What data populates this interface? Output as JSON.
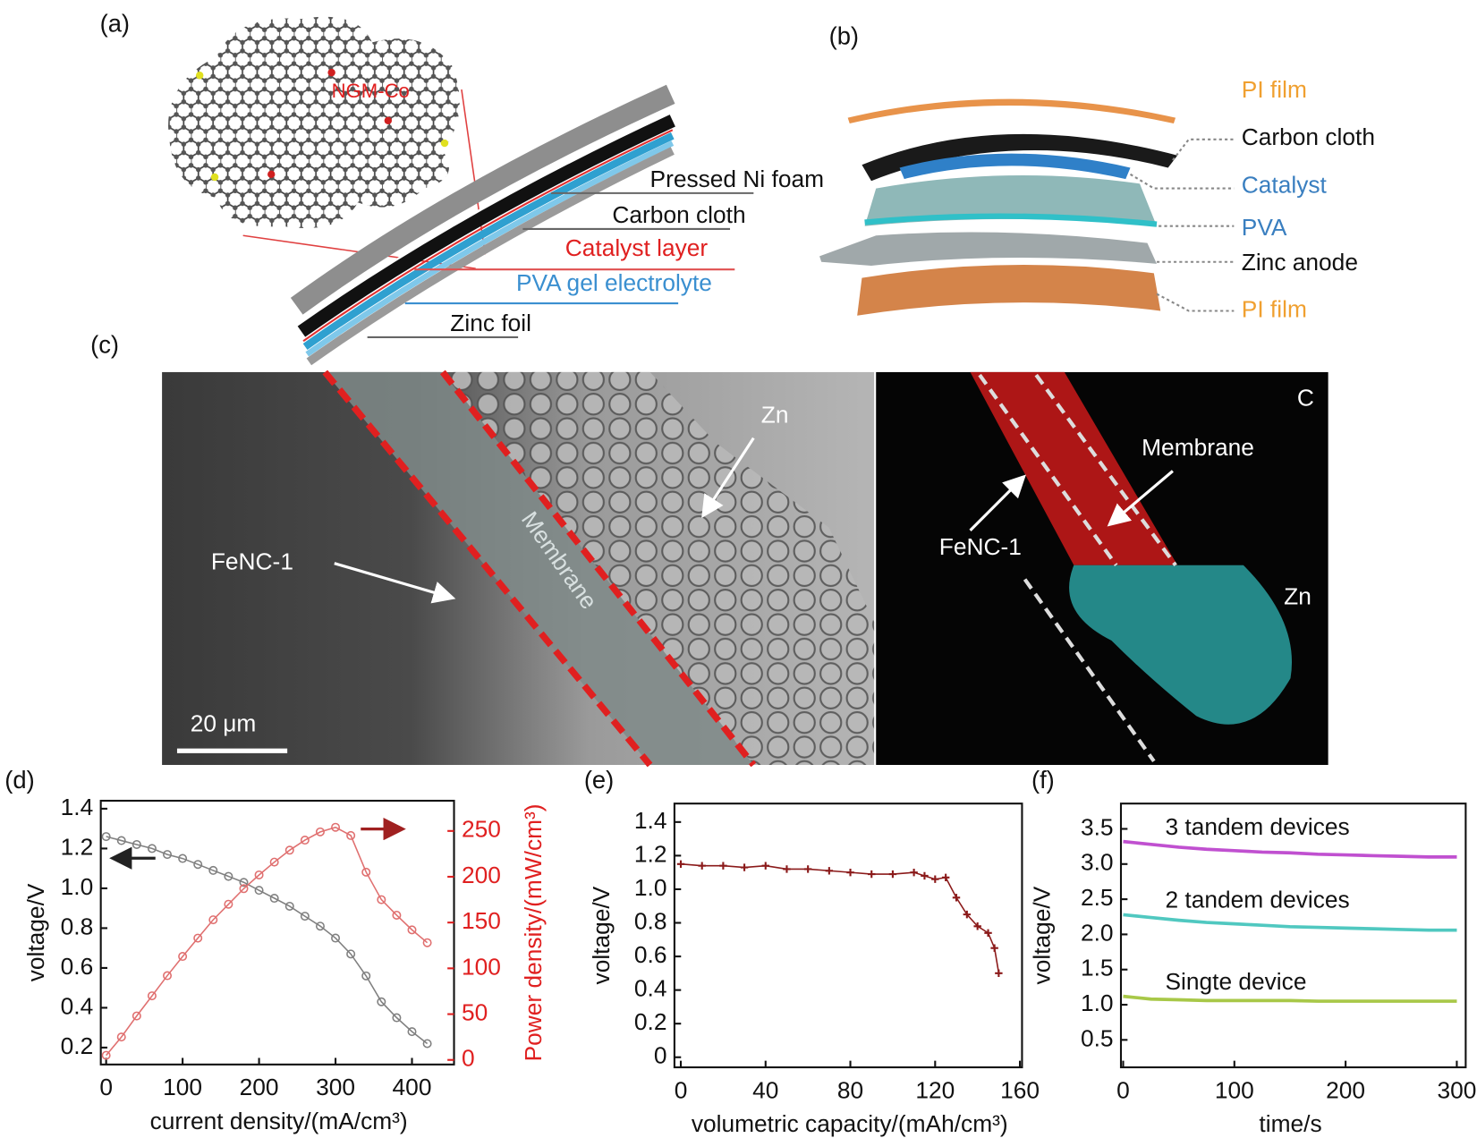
{
  "figure": {
    "panel_labels": [
      "(a)",
      "(b)",
      "(c)",
      "(d)",
      "(e)",
      "(f)"
    ],
    "a": {
      "molecule_label": "NGM-Co",
      "layers": [
        "Pressed Ni foam",
        "Carbon cloth",
        "Catalyst layer",
        "PVA gel electrolyte",
        "Zinc foil"
      ]
    },
    "b": {
      "layers": [
        "PI film",
        "Carbon cloth",
        "Catalyst",
        "PVA",
        "Zinc anode",
        "PI film"
      ]
    },
    "c": {
      "sem": {
        "zn": "Zn",
        "fenc": "FeNC-1",
        "membrane": "Membrane",
        "scale": "20 μm"
      },
      "map": {
        "c": "C",
        "membrane": "Membrane",
        "fenc": "FeNC-1",
        "zn": "Zn"
      }
    }
  },
  "chart_data": [
    {
      "type": "line",
      "x_label": "current density/(mA/cm³)",
      "y_label": "voltage/V",
      "y2_label": "Power density/(mW/cm³)",
      "y2_color": "#e02020",
      "marker": "circle",
      "x": [
        0,
        20,
        40,
        60,
        80,
        100,
        120,
        140,
        160,
        180,
        200,
        220,
        240,
        260,
        280,
        300,
        320,
        340,
        360,
        380,
        400,
        420
      ],
      "series": [
        {
          "color": "#808080",
          "values": [
            1.26,
            1.24,
            1.22,
            1.2,
            1.17,
            1.15,
            1.12,
            1.09,
            1.06,
            1.03,
            0.99,
            0.95,
            0.91,
            0.86,
            0.81,
            0.75,
            0.67,
            0.56,
            0.43,
            0.35,
            0.28,
            0.22
          ]
        },
        {
          "color": "#e07070",
          "axis": "y2",
          "values": [
            5,
            25,
            48,
            70,
            92,
            113,
            133,
            153,
            170,
            187,
            202,
            216,
            229,
            240,
            249,
            254,
            245,
            205,
            175,
            158,
            142,
            128
          ]
        }
      ],
      "xlim": [
        -7,
        455
      ],
      "xticks": [
        0,
        100,
        200,
        300,
        400
      ],
      "ylim": [
        0.115,
        1.44
      ],
      "yticks": [
        0.2,
        0.4,
        0.6,
        0.8,
        {
          "value": 1,
          "label": "1.0"
        },
        1.2,
        1.4
      ],
      "y2lim": [
        -5,
        283
      ],
      "y2ticks": [
        0,
        50,
        100,
        150,
        200,
        250
      ]
    },
    {
      "type": "line",
      "x_label": "volumetric capacity/(mAh/cm³)",
      "y_label": "voltage/V",
      "marker": "cross",
      "x": [
        0,
        10,
        20,
        30,
        40,
        50,
        60,
        70,
        80,
        90,
        100,
        110,
        115,
        120,
        125,
        130,
        135,
        140,
        145,
        148,
        150
      ],
      "series": [
        {
          "color": "#8b1a1a",
          "values": [
            1.15,
            1.14,
            1.14,
            1.13,
            1.14,
            1.12,
            1.12,
            1.11,
            1.1,
            1.09,
            1.09,
            1.1,
            1.08,
            1.06,
            1.07,
            0.95,
            0.85,
            0.78,
            0.74,
            0.65,
            0.5
          ]
        }
      ],
      "xlim": [
        -3,
        161
      ],
      "xticks": [
        0,
        40,
        80,
        120,
        160
      ],
      "ylim": [
        -0.06,
        1.51
      ],
      "yticks": [
        0,
        0.2,
        0.4,
        0.6,
        0.8,
        {
          "value": 1,
          "label": "1.0"
        },
        1.2,
        1.4
      ]
    },
    {
      "type": "line",
      "x_label": "time/s",
      "y_label": "voltage/V",
      "x": [
        0,
        25,
        50,
        75,
        100,
        125,
        150,
        175,
        200,
        225,
        250,
        275,
        300
      ],
      "series": [
        {
          "name": "3 tandem devices",
          "color": "#c050d0",
          "values": [
            3.32,
            3.28,
            3.24,
            3.21,
            3.19,
            3.17,
            3.16,
            3.14,
            3.13,
            3.12,
            3.11,
            3.1,
            3.1
          ]
        },
        {
          "name": "2 tandem devices",
          "color": "#50c8c0",
          "values": [
            2.28,
            2.24,
            2.2,
            2.17,
            2.15,
            2.13,
            2.11,
            2.1,
            2.09,
            2.08,
            2.07,
            2.06,
            2.06
          ]
        },
        {
          "name": "Singte device",
          "color": "#a8c848",
          "values": [
            1.12,
            1.08,
            1.07,
            1.06,
            1.06,
            1.06,
            1.06,
            1.05,
            1.05,
            1.05,
            1.05,
            1.05,
            1.05
          ]
        }
      ],
      "xlim": [
        -2,
        308
      ],
      "xticks": [
        0,
        100,
        200,
        300
      ],
      "ylim": [
        0.11,
        3.86
      ],
      "yticks": [
        0.5,
        {
          "value": 1,
          "label": "1.0"
        },
        1.5,
        {
          "value": 2,
          "label": "2.0"
        },
        2.5,
        {
          "value": 3,
          "label": "3.0"
        },
        3.5
      ]
    }
  ]
}
